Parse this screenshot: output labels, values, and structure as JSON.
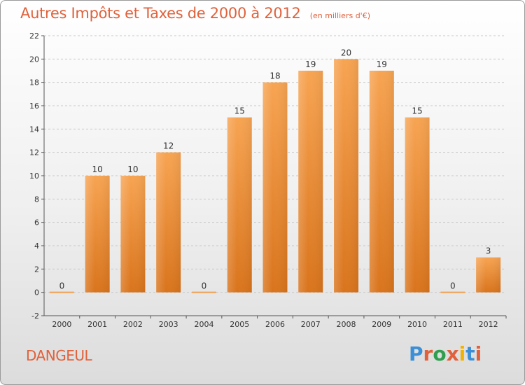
{
  "header": {
    "title": "Autres Impôts et Taxes de 2000 à 2012",
    "subtitle": "(en milliers d'€)"
  },
  "footer": {
    "place": "DANGEUL",
    "logo_text": "Proxiti",
    "logo_colors": [
      "#3a8fd6",
      "#e0613b",
      "#2e9e4f",
      "#e0613b",
      "#f2b300",
      "#3a8fd6",
      "#e0613b"
    ]
  },
  "colors": {
    "bar_top": "#f7a452",
    "bar_bottom": "#d9741c",
    "zero_line": "#f0a050",
    "text": "#333333",
    "grid": "#c8c8c8"
  },
  "chart_data": {
    "type": "bar",
    "categories": [
      "2000",
      "2001",
      "2002",
      "2003",
      "2004",
      "2005",
      "2006",
      "2007",
      "2008",
      "2009",
      "2010",
      "2011",
      "2012"
    ],
    "values": [
      0,
      10,
      10,
      12,
      0,
      15,
      18,
      19,
      20,
      19,
      15,
      0,
      3
    ],
    "data_labels": [
      "0",
      "10",
      "10",
      "12",
      "0",
      "15",
      "18",
      "19",
      "20",
      "19",
      "15",
      "0",
      "3"
    ],
    "yticks": [
      -2,
      0,
      2,
      4,
      6,
      8,
      10,
      12,
      14,
      16,
      18,
      20,
      22
    ],
    "ylim": [
      -2,
      22
    ],
    "grid": true,
    "grid_style": "dashed-horizontal"
  }
}
